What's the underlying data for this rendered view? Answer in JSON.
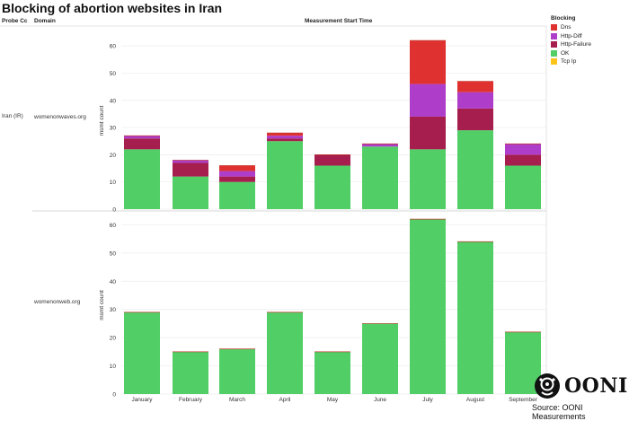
{
  "title": "Blocking of abortion websites in Iran",
  "headers": {
    "probe_cc": "Probe Cc",
    "domain": "Domain",
    "measurement_start": "Measurement Start Time"
  },
  "probe_country": "Iran (IR)",
  "legend": {
    "title": "Blocking",
    "items": [
      {
        "label": "Dns",
        "color": "#e03131"
      },
      {
        "label": "Http-Diff",
        "color": "#ae3ec9"
      },
      {
        "label": "Http-Failure",
        "color": "#a61e4d"
      },
      {
        "label": "OK",
        "color": "#51cf66"
      },
      {
        "label": "Tcp Ip",
        "color": "#fcc419"
      }
    ]
  },
  "footer": {
    "logo_text": "OONI",
    "source": "Source: OONI Measurements"
  },
  "chart_data": [
    {
      "type": "bar",
      "stacked": true,
      "facet": "womenonwaves.org",
      "xlabel": "",
      "ylabel": "msmt count",
      "ylim": [
        0,
        65
      ],
      "yticks": [
        0,
        10,
        20,
        30,
        40,
        50,
        60
      ],
      "categories": [
        "January",
        "February",
        "March",
        "April",
        "May",
        "June",
        "July",
        "August",
        "September"
      ],
      "series": [
        {
          "name": "OK",
          "values": [
            22,
            12,
            10,
            25,
            16,
            23,
            22,
            29,
            16
          ]
        },
        {
          "name": "Http-Failure",
          "values": [
            4,
            5,
            2,
            1,
            4,
            0,
            12,
            8,
            4
          ]
        },
        {
          "name": "Http-Diff",
          "values": [
            1,
            1,
            2,
            1,
            0,
            1,
            12,
            6,
            4
          ]
        },
        {
          "name": "Dns",
          "values": [
            0,
            0,
            2,
            1,
            0,
            0,
            16,
            4,
            0
          ]
        },
        {
          "name": "Tcp Ip",
          "values": [
            0,
            0,
            0,
            0,
            0,
            0,
            0,
            0,
            0
          ]
        }
      ]
    },
    {
      "type": "bar",
      "stacked": true,
      "facet": "womenonweb.org",
      "xlabel": "",
      "ylabel": "msmt count",
      "ylim": [
        0,
        63
      ],
      "yticks": [
        0,
        10,
        20,
        30,
        40,
        50,
        60
      ],
      "categories": [
        "January",
        "February",
        "March",
        "April",
        "May",
        "June",
        "July",
        "August",
        "September"
      ],
      "series": [
        {
          "name": "OK",
          "values": [
            29,
            15,
            16,
            29,
            15,
            25,
            62,
            54,
            22
          ]
        },
        {
          "name": "Http-Failure",
          "values": [
            0,
            0,
            0,
            0,
            0,
            0,
            0,
            0,
            0
          ]
        },
        {
          "name": "Http-Diff",
          "values": [
            0,
            0,
            0,
            0,
            0,
            0,
            0,
            0,
            0
          ]
        },
        {
          "name": "Dns",
          "values": [
            0,
            0,
            0,
            0,
            0,
            0,
            0,
            0,
            0
          ]
        },
        {
          "name": "Tcp Ip",
          "values": [
            0,
            0,
            0,
            0,
            0,
            0,
            0,
            0,
            0
          ]
        }
      ]
    }
  ]
}
